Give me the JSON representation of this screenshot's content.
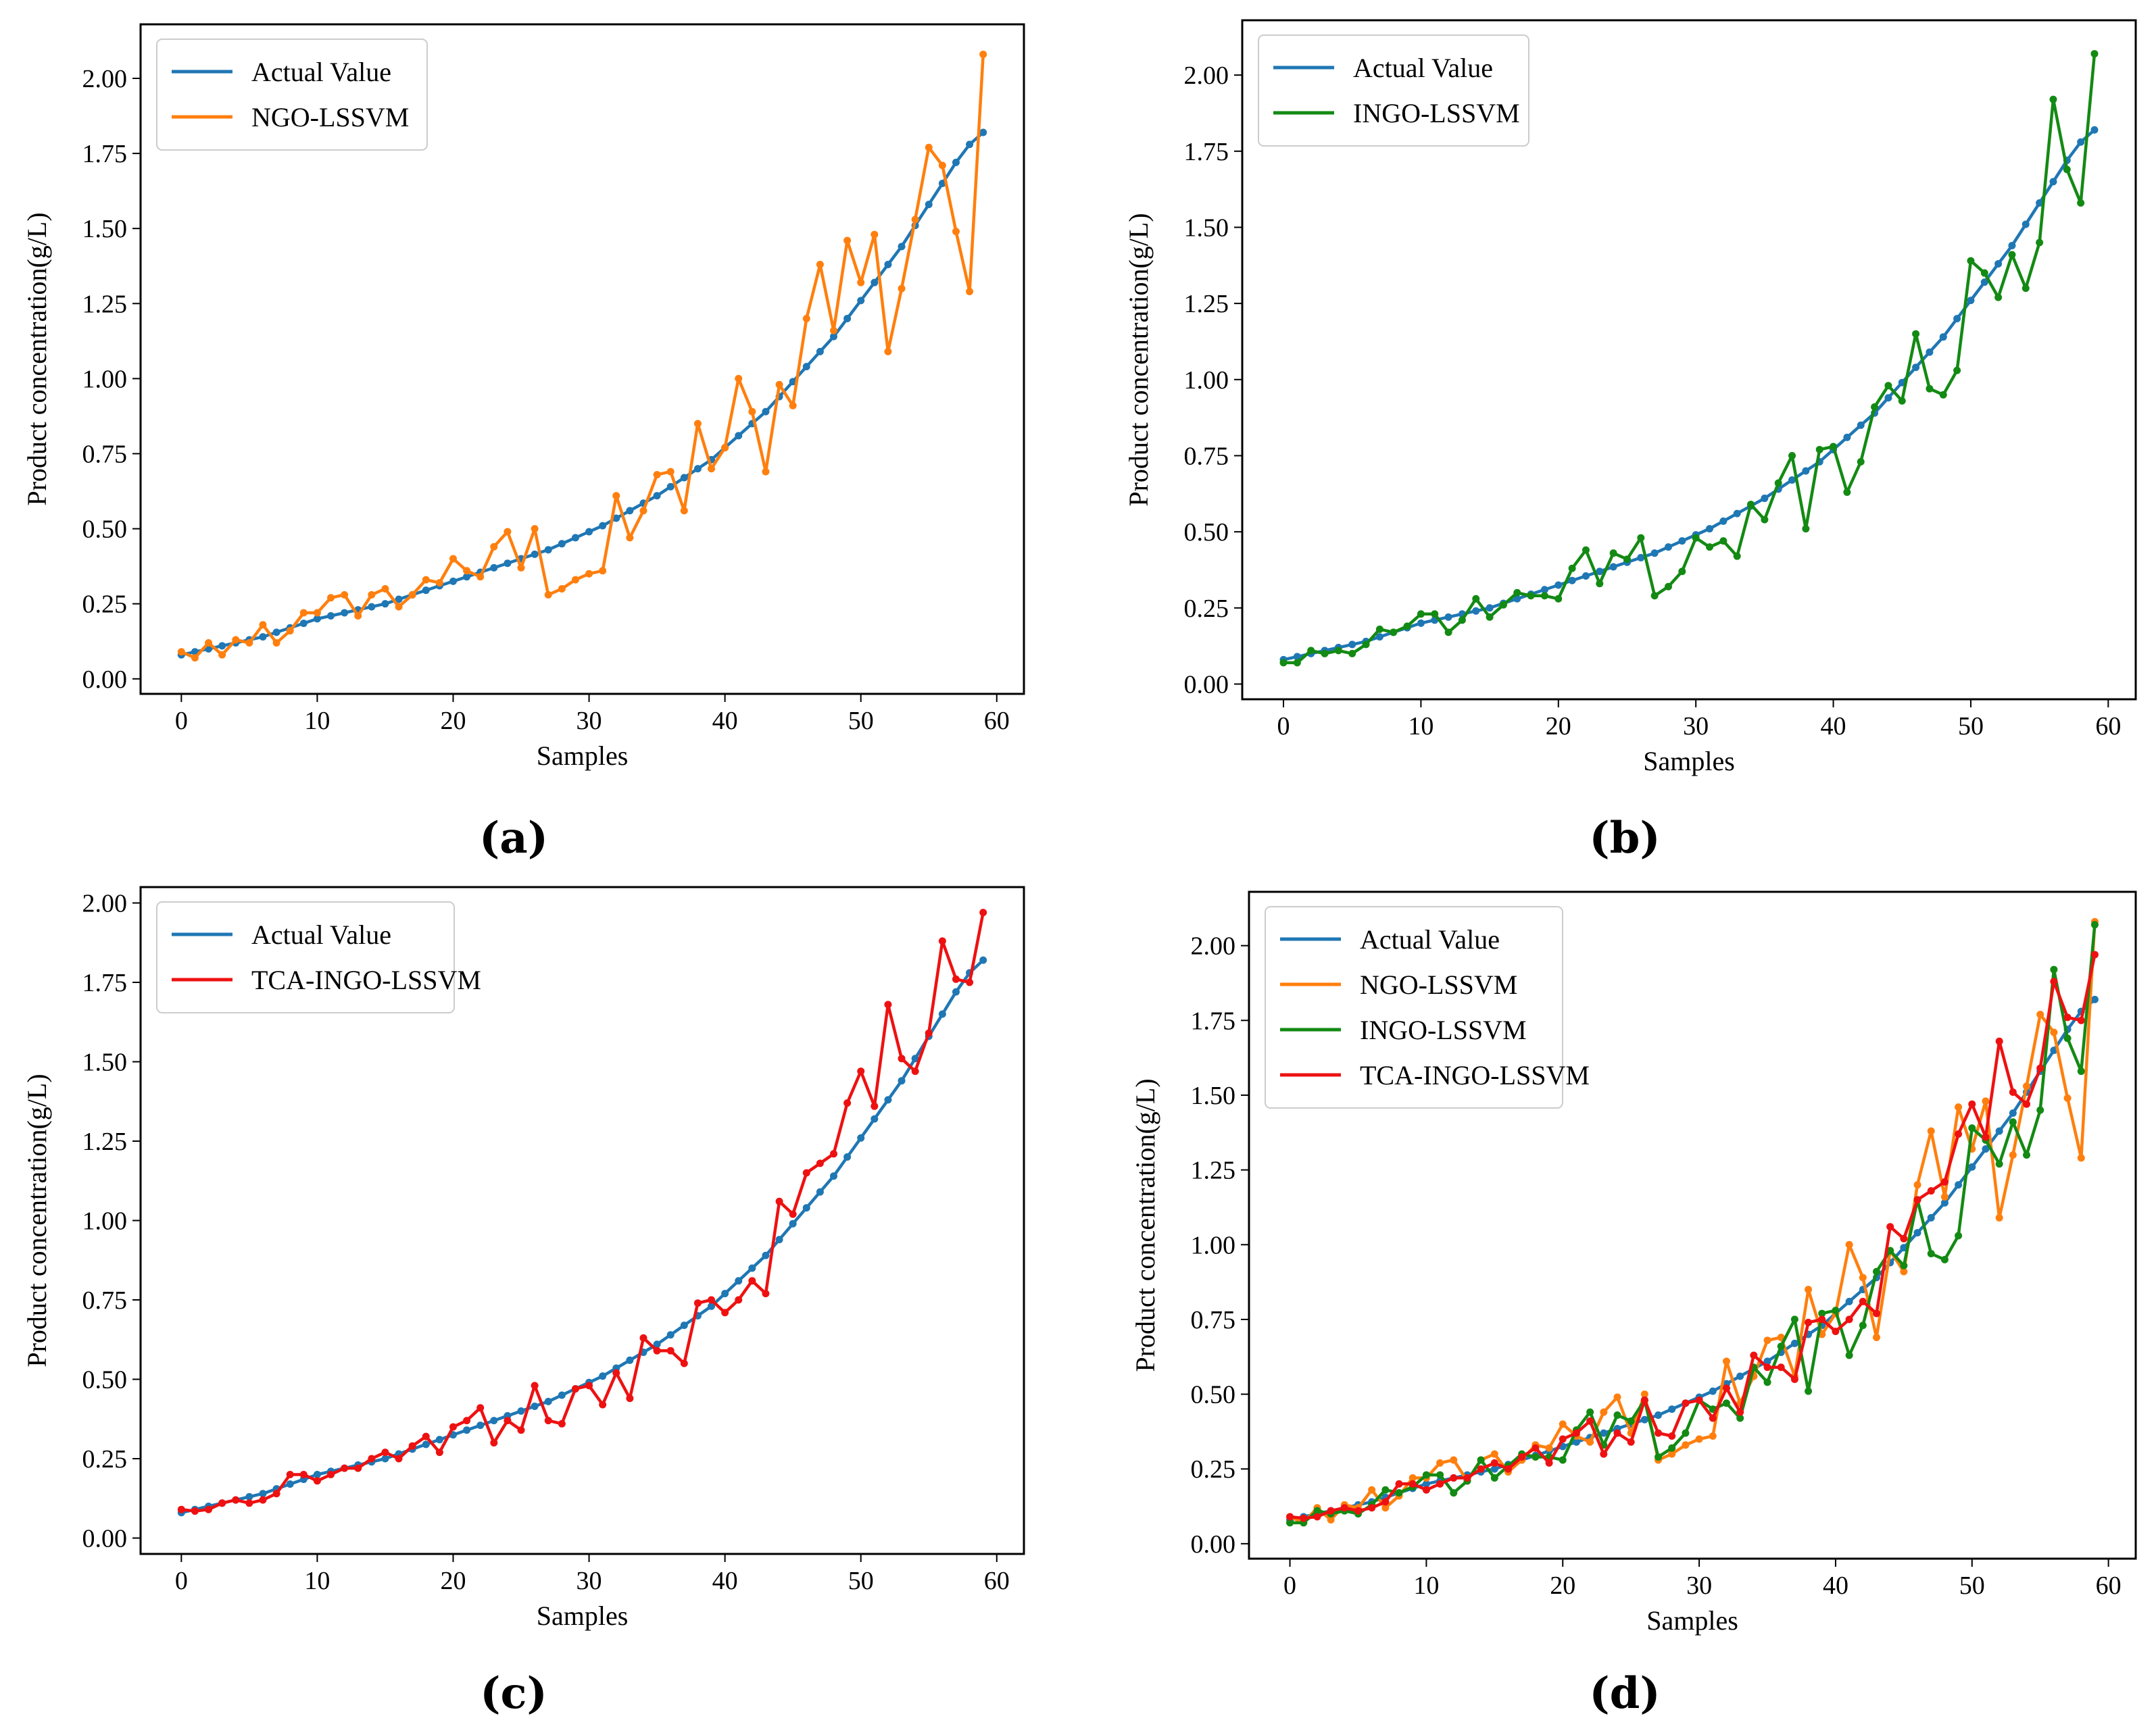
{
  "chart_data": [
    {
      "panel": "(a)",
      "type": "line",
      "xlabel": "Samples",
      "ylabel": "Product concentration(g/L)",
      "xlim": [
        -3,
        62
      ],
      "ylim": [
        -0.05,
        2.18
      ],
      "xticks": [
        0,
        10,
        20,
        30,
        40,
        50,
        60
      ],
      "yticks": [
        "0.00",
        "0.25",
        "0.50",
        "0.75",
        "1.00",
        "1.25",
        "1.50",
        "1.75",
        "2.00"
      ],
      "legend": "top-left",
      "series": [
        "actual",
        "ngo"
      ]
    },
    {
      "panel": "(b)",
      "type": "line",
      "xlabel": "Samples",
      "ylabel": "Product concentration(g/L)",
      "xlim": [
        -3,
        62
      ],
      "ylim": [
        -0.05,
        2.18
      ],
      "xticks": [
        0,
        10,
        20,
        30,
        40,
        50,
        60
      ],
      "yticks": [
        "0.00",
        "0.25",
        "0.50",
        "0.75",
        "1.00",
        "1.25",
        "1.50",
        "1.75",
        "2.00"
      ],
      "legend": "top-left",
      "series": [
        "actual",
        "ingo"
      ]
    },
    {
      "panel": "(c)",
      "type": "line",
      "xlabel": "Samples",
      "ylabel": "Product concentration(g/L)",
      "xlim": [
        -3,
        62
      ],
      "ylim": [
        -0.05,
        2.05
      ],
      "xticks": [
        0,
        10,
        20,
        30,
        40,
        50,
        60
      ],
      "yticks": [
        "0.00",
        "0.25",
        "0.50",
        "0.75",
        "1.00",
        "1.25",
        "1.50",
        "1.75",
        "2.00"
      ],
      "legend": "top-left",
      "series": [
        "actual",
        "tca"
      ]
    },
    {
      "panel": "(d)",
      "type": "line",
      "xlabel": "Samples",
      "ylabel": "Product concentration(g/L)",
      "xlim": [
        -3,
        62
      ],
      "ylim": [
        -0.05,
        2.18
      ],
      "xticks": [
        0,
        10,
        20,
        30,
        40,
        50,
        60
      ],
      "yticks": [
        "0.00",
        "0.25",
        "0.50",
        "0.75",
        "1.00",
        "1.25",
        "1.50",
        "1.75",
        "2.00"
      ],
      "legend": "top-left",
      "series": [
        "actual",
        "ngo",
        "ingo",
        "tca"
      ]
    }
  ],
  "series_defs": {
    "actual": {
      "name": "Actual Value",
      "color": "#1f77b4",
      "values": [
        0.08,
        0.09,
        0.1,
        0.11,
        0.12,
        0.13,
        0.14,
        0.155,
        0.17,
        0.185,
        0.2,
        0.21,
        0.22,
        0.23,
        0.24,
        0.25,
        0.265,
        0.28,
        0.295,
        0.31,
        0.325,
        0.34,
        0.355,
        0.37,
        0.385,
        0.4,
        0.415,
        0.43,
        0.45,
        0.47,
        0.49,
        0.51,
        0.535,
        0.56,
        0.585,
        0.61,
        0.64,
        0.67,
        0.7,
        0.73,
        0.77,
        0.81,
        0.85,
        0.89,
        0.94,
        0.99,
        1.04,
        1.09,
        1.14,
        1.2,
        1.26,
        1.32,
        1.38,
        1.44,
        1.51,
        1.58,
        1.65,
        1.72,
        1.78,
        1.82
      ]
    },
    "ngo": {
      "name": "NGO-LSSVM",
      "color": "#ff7f0e",
      "values": [
        0.09,
        0.07,
        0.12,
        0.08,
        0.13,
        0.12,
        0.18,
        0.12,
        0.16,
        0.22,
        0.22,
        0.27,
        0.28,
        0.21,
        0.28,
        0.3,
        0.24,
        0.28,
        0.33,
        0.32,
        0.4,
        0.36,
        0.34,
        0.44,
        0.49,
        0.37,
        0.5,
        0.28,
        0.3,
        0.33,
        0.35,
        0.36,
        0.61,
        0.47,
        0.56,
        0.68,
        0.69,
        0.56,
        0.85,
        0.7,
        0.77,
        1.0,
        0.89,
        0.69,
        0.98,
        0.91,
        1.2,
        1.38,
        1.16,
        1.46,
        1.32,
        1.48,
        1.09,
        1.3,
        1.53,
        1.77,
        1.71,
        1.49,
        1.29,
        2.08
      ]
    },
    "ingo": {
      "name": "INGO-LSSVM",
      "color": "#138a13",
      "values": [
        0.07,
        0.07,
        0.11,
        0.1,
        0.11,
        0.1,
        0.13,
        0.18,
        0.17,
        0.19,
        0.23,
        0.23,
        0.17,
        0.21,
        0.28,
        0.22,
        0.26,
        0.3,
        0.29,
        0.29,
        0.28,
        0.38,
        0.44,
        0.33,
        0.43,
        0.41,
        0.48,
        0.29,
        0.32,
        0.37,
        0.48,
        0.45,
        0.47,
        0.42,
        0.59,
        0.54,
        0.66,
        0.75,
        0.51,
        0.77,
        0.78,
        0.63,
        0.73,
        0.91,
        0.98,
        0.93,
        1.15,
        0.97,
        0.95,
        1.03,
        1.39,
        1.35,
        1.27,
        1.41,
        1.3,
        1.45,
        1.92,
        1.69,
        1.58,
        2.07
      ]
    },
    "tca": {
      "name": "TCA-INGO-LSSVM",
      "color": "#ee1111",
      "values": [
        0.09,
        0.085,
        0.09,
        0.11,
        0.12,
        0.11,
        0.12,
        0.14,
        0.2,
        0.2,
        0.18,
        0.2,
        0.22,
        0.22,
        0.25,
        0.27,
        0.25,
        0.29,
        0.32,
        0.27,
        0.35,
        0.37,
        0.41,
        0.3,
        0.37,
        0.34,
        0.48,
        0.37,
        0.36,
        0.47,
        0.48,
        0.42,
        0.52,
        0.44,
        0.63,
        0.59,
        0.59,
        0.55,
        0.74,
        0.75,
        0.71,
        0.75,
        0.81,
        0.77,
        1.06,
        1.02,
        1.15,
        1.18,
        1.21,
        1.37,
        1.47,
        1.36,
        1.68,
        1.51,
        1.47,
        1.59,
        1.88,
        1.76,
        1.75,
        1.97
      ]
    }
  }
}
